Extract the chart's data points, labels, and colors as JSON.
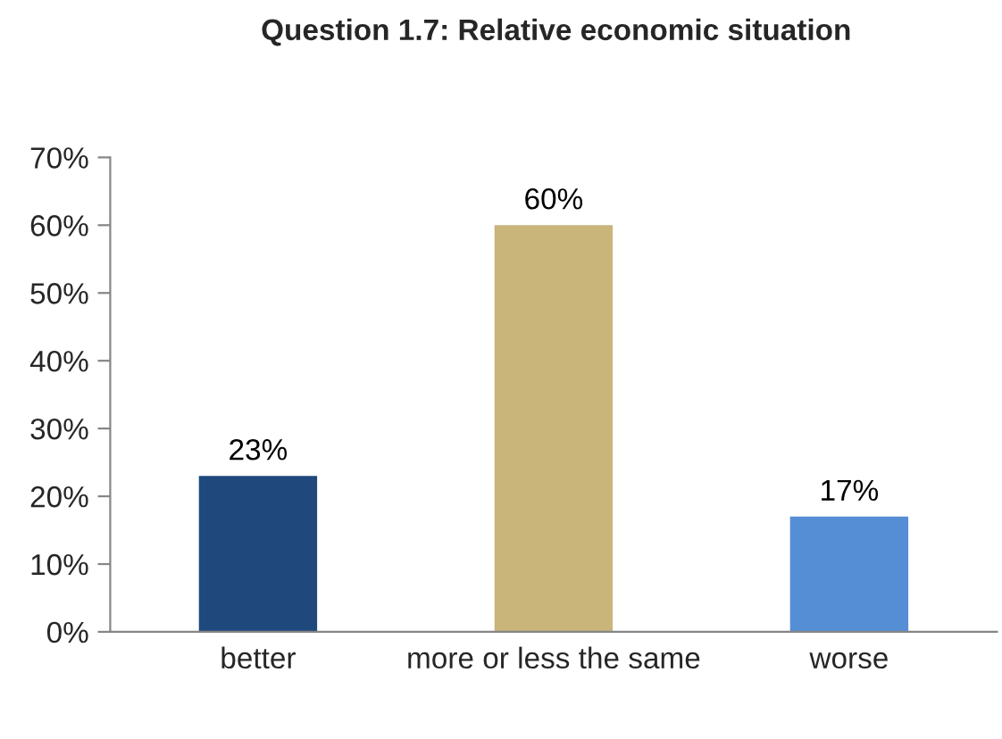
{
  "chart_data": {
    "type": "bar",
    "title": "Question 1.7: Relative economic situation",
    "categories": [
      "better",
      "more or less the same",
      "worse"
    ],
    "values": [
      23,
      60,
      17
    ],
    "colors": [
      "#1f497d",
      "#c9b47a",
      "#558ed5"
    ],
    "value_labels": [
      "23%",
      "60%",
      "17%"
    ],
    "ylim": [
      0,
      70
    ],
    "yticks": [
      {
        "value": 0,
        "label": "0%"
      },
      {
        "value": 10,
        "label": "10%"
      },
      {
        "value": 20,
        "label": "20%"
      },
      {
        "value": 30,
        "label": "30%"
      },
      {
        "value": 40,
        "label": "40%"
      },
      {
        "value": 50,
        "label": "50%"
      },
      {
        "value": 60,
        "label": "60%"
      },
      {
        "value": 70,
        "label": "70%"
      }
    ],
    "grid": false,
    "legend": false
  }
}
